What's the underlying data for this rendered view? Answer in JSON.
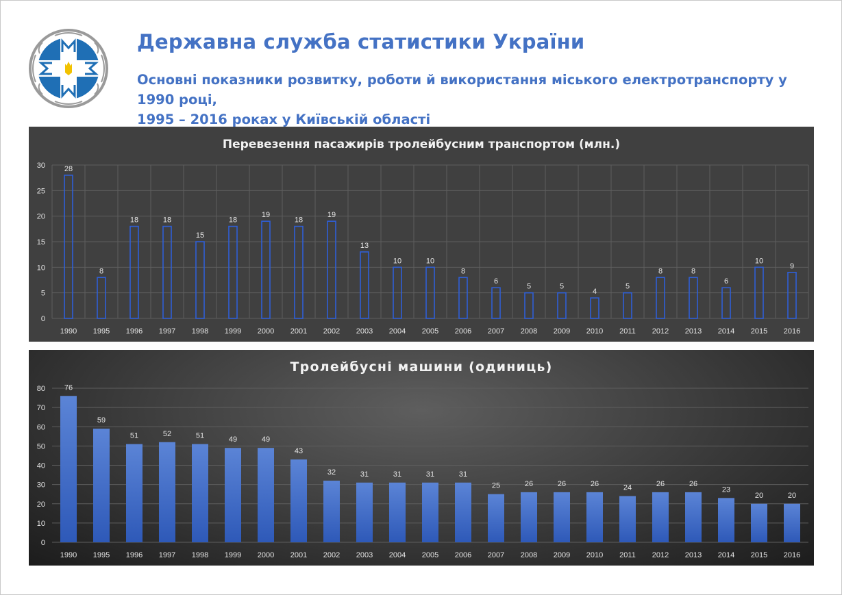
{
  "header": {
    "agency_name": "Державна служба статистики України",
    "subtitle_line1": "Основні показники розвитку, роботи й використання міського електротранспорту у 1990 році,",
    "subtitle_line2": "1995 – 2016 роках у Київській області"
  },
  "logo": {
    "icon": "derzhstat-emblem-icon",
    "colors": {
      "primary": "#1f6fb5",
      "ring": "#ffffff",
      "trim": "#9a9a9a",
      "trident": "#f2c200"
    }
  },
  "colors": {
    "accent": "#4472c4",
    "panel": "#404040",
    "bar_outline": "#2f5fd6",
    "bar_fill": "#4a74cc"
  },
  "chart_data": [
    {
      "type": "bar",
      "style": "outlined",
      "title": "Перевезення пасажирів тролейбусним транспортом (млн.)",
      "categories": [
        "1990",
        "1995",
        "1996",
        "1997",
        "1998",
        "1999",
        "2000",
        "2001",
        "2002",
        "2003",
        "2004",
        "2005",
        "2006",
        "2007",
        "2008",
        "2009",
        "2010",
        "2011",
        "2012",
        "2013",
        "2014",
        "2015",
        "2016"
      ],
      "values": [
        28,
        8,
        18,
        18,
        15,
        18,
        19,
        18,
        19,
        13,
        10,
        10,
        8,
        6,
        5,
        5,
        4,
        5,
        8,
        8,
        6,
        10,
        9
      ],
      "ylim": [
        0,
        30
      ],
      "yticks": [
        0,
        5,
        10,
        15,
        20,
        25,
        30
      ],
      "grid": true,
      "data_labels": true
    },
    {
      "type": "bar",
      "style": "filled",
      "title": "Тролейбусні машини (одиниць)",
      "categories": [
        "1990",
        "1995",
        "1996",
        "1997",
        "1998",
        "1999",
        "2000",
        "2001",
        "2002",
        "2003",
        "2004",
        "2005",
        "2006",
        "2007",
        "2008",
        "2009",
        "2010",
        "2011",
        "2012",
        "2013",
        "2014",
        "2015",
        "2016"
      ],
      "values": [
        76,
        59,
        51,
        52,
        51,
        49,
        49,
        43,
        32,
        31,
        31,
        31,
        31,
        25,
        26,
        26,
        26,
        24,
        26,
        26,
        23,
        20,
        20
      ],
      "ylim": [
        0,
        80
      ],
      "yticks": [
        0,
        10,
        20,
        30,
        40,
        50,
        60,
        70,
        80
      ],
      "grid": true,
      "data_labels": true
    }
  ]
}
